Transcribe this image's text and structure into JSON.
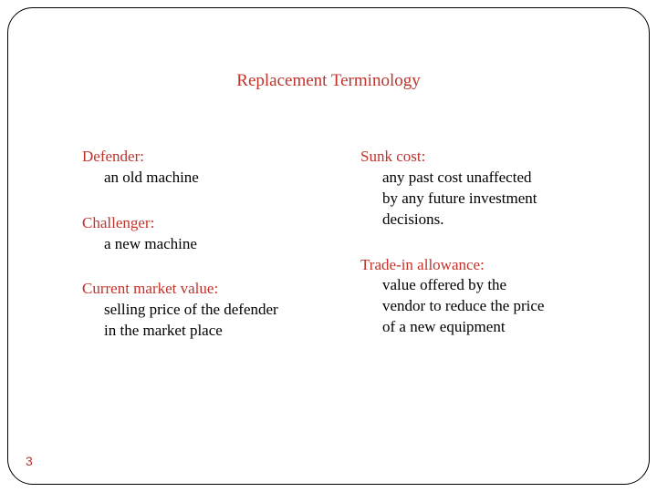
{
  "title": "Replacement  Terminology",
  "left": {
    "defender": {
      "term": "Defender:",
      "def": "an old machine"
    },
    "challenger": {
      "term": "Challenger:",
      "def": "a new machine"
    },
    "cmv": {
      "term": "Current market value:",
      "def1": "selling price of the defender",
      "def2": "in the market place"
    }
  },
  "right": {
    "sunk": {
      "term": "Sunk cost:",
      "def1": "any past cost unaffected",
      "def2": "by any future investment",
      "def3": "decisions."
    },
    "trade": {
      "term": "Trade-in allowance:",
      "def1": "value offered by the",
      "def2": "vendor to reduce the price",
      "def3": "of a new equipment"
    }
  },
  "pageNumber": "3",
  "colors": {
    "heading": "#c0332b",
    "body": "#000000",
    "border": "#000000",
    "background": "#ffffff"
  },
  "fontsize": {
    "title": 19,
    "body": 17,
    "pagenum": 14
  }
}
